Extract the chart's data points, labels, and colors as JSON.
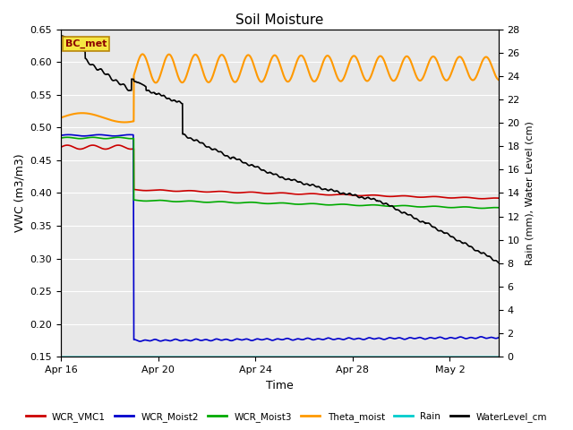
{
  "title": "Soil Moisture",
  "xlabel": "Time",
  "ylabel_left": "VWC (m3/m3)",
  "ylabel_right": "Rain (mm), Water Level (cm)",
  "ylim_left": [
    0.15,
    0.65
  ],
  "ylim_right": [
    0,
    28
  ],
  "yticks_left": [
    0.15,
    0.2,
    0.25,
    0.3,
    0.35,
    0.4,
    0.45,
    0.5,
    0.55,
    0.6,
    0.65
  ],
  "yticks_right": [
    0,
    2,
    4,
    6,
    8,
    10,
    12,
    14,
    16,
    18,
    20,
    22,
    24,
    26,
    28
  ],
  "bg_color": "#e8e8e8",
  "annotation_text": "BC_met",
  "lines": {
    "WCR_VMC1": {
      "color": "#cc0000",
      "lw": 1.2
    },
    "WCR_Moist2": {
      "color": "#0000cc",
      "lw": 1.2
    },
    "WCR_Moist3": {
      "color": "#00aa00",
      "lw": 1.2
    },
    "Theta_moist": {
      "color": "#ff9900",
      "lw": 1.5
    },
    "Rain": {
      "color": "#00cccc",
      "lw": 1.2
    },
    "WaterLevel_cm": {
      "color": "#000000",
      "lw": 1.2
    }
  },
  "x_ticks_labels": [
    "Apr 16",
    "Apr 20",
    "Apr 24",
    "Apr 28",
    "May 2"
  ],
  "x_ticks_pos": [
    0,
    4,
    8,
    12,
    16
  ],
  "total_days": 18,
  "bp": 3.0,
  "figwidth": 6.4,
  "figheight": 4.8,
  "dpi": 100
}
